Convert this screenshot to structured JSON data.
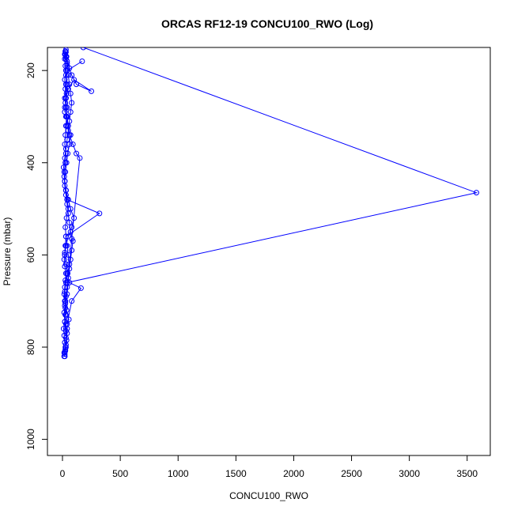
{
  "chart_data": {
    "type": "line",
    "title": "ORCAS RF12-19 CONCU100_RWO (Log)",
    "xlabel": "CONCU100_RWO",
    "ylabel": "Pressure (mbar)",
    "xlim": [
      -130,
      3700
    ],
    "ylim": [
      1035,
      150
    ],
    "y_reversed": true,
    "xticks": [
      0,
      500,
      1000,
      1500,
      2000,
      2500,
      3000,
      3500
    ],
    "yticks": [
      200,
      400,
      600,
      800,
      1000
    ],
    "grid": false,
    "legend": "none",
    "color": "#0000ff",
    "marker": "open-circle",
    "series": [
      {
        "x": [
          20,
          15,
          25,
          30,
          40,
          55,
          35,
          25,
          20,
          30,
          45,
          60,
          50,
          40,
          30,
          25,
          35,
          50,
          40,
          30,
          20,
          15,
          25,
          30,
          20,
          25,
          30,
          35,
          40,
          30,
          25,
          20,
          30,
          40,
          35,
          30,
          25,
          20,
          25,
          30,
          40,
          35,
          25,
          20
        ],
        "y": [
          820,
          812,
          800,
          780,
          760,
          740,
          720,
          700,
          680,
          660,
          640,
          620,
          600,
          580,
          560,
          540,
          520,
          500,
          480,
          460,
          440,
          420,
          400,
          380,
          360,
          340,
          320,
          300,
          280,
          260,
          240,
          220,
          200,
          185,
          170,
          160,
          165,
          175,
          190,
          210,
          230,
          250,
          270,
          290
        ]
      },
      {
        "x": [
          20,
          30,
          40,
          30,
          25,
          20,
          30,
          40,
          50,
          60,
          70,
          80,
          90,
          70,
          60,
          50,
          40,
          30,
          20,
          15,
          10,
          20,
          30,
          40,
          50,
          60,
          70,
          80,
          70,
          60,
          50,
          40,
          30,
          20,
          25,
          30
        ],
        "y": [
          810,
          795,
          770,
          750,
          730,
          710,
          690,
          670,
          650,
          630,
          610,
          590,
          570,
          550,
          530,
          510,
          490,
          470,
          450,
          430,
          410,
          390,
          370,
          350,
          330,
          310,
          290,
          270,
          250,
          230,
          210,
          190,
          175,
          165,
          158,
          155
        ]
      },
      {
        "x": [
          25,
          35,
          30,
          20,
          15,
          25,
          40,
          80,
          150,
          120,
          90,
          60,
          40,
          30,
          20,
          30,
          50,
          100,
          250,
          120,
          80,
          60,
          40,
          30,
          25
        ],
        "y": [
          805,
          785,
          765,
          745,
          725,
          705,
          685,
          565,
          390,
          380,
          360,
          340,
          320,
          300,
          280,
          260,
          240,
          220,
          245,
          230,
          210,
          195,
          180,
          170,
          160
        ]
      },
      {
        "x": [
          20,
          30,
          320,
          40,
          30,
          20,
          25,
          35,
          45,
          60,
          70,
          50,
          40,
          30,
          20,
          30,
          40,
          170
        ],
        "y": [
          600,
          560,
          510,
          480,
          460,
          440,
          420,
          400,
          380,
          360,
          340,
          320,
          300,
          280,
          260,
          230,
          200,
          180
        ]
      },
      {
        "x": [
          40,
          80,
          160,
          60,
          40,
          30,
          20,
          30,
          50,
          80,
          100,
          70,
          50,
          30,
          20
        ],
        "y": [
          750,
          700,
          672,
          660,
          640,
          620,
          600,
          580,
          560,
          540,
          520,
          500,
          480,
          460,
          440
        ]
      },
      {
        "x": [
          180,
          3580,
          40
        ],
        "y": [
          150,
          465,
          660
        ]
      },
      {
        "x": [
          15,
          20,
          25,
          30,
          20,
          15,
          10,
          20,
          30,
          25,
          20,
          15,
          20,
          25,
          30,
          20,
          15,
          20,
          25
        ],
        "y": [
          820,
          815,
          808,
          800,
          790,
          775,
          760,
          745,
          730,
          715,
          700,
          685,
          670,
          655,
          640,
          625,
          610,
          595,
          580
        ]
      }
    ]
  }
}
